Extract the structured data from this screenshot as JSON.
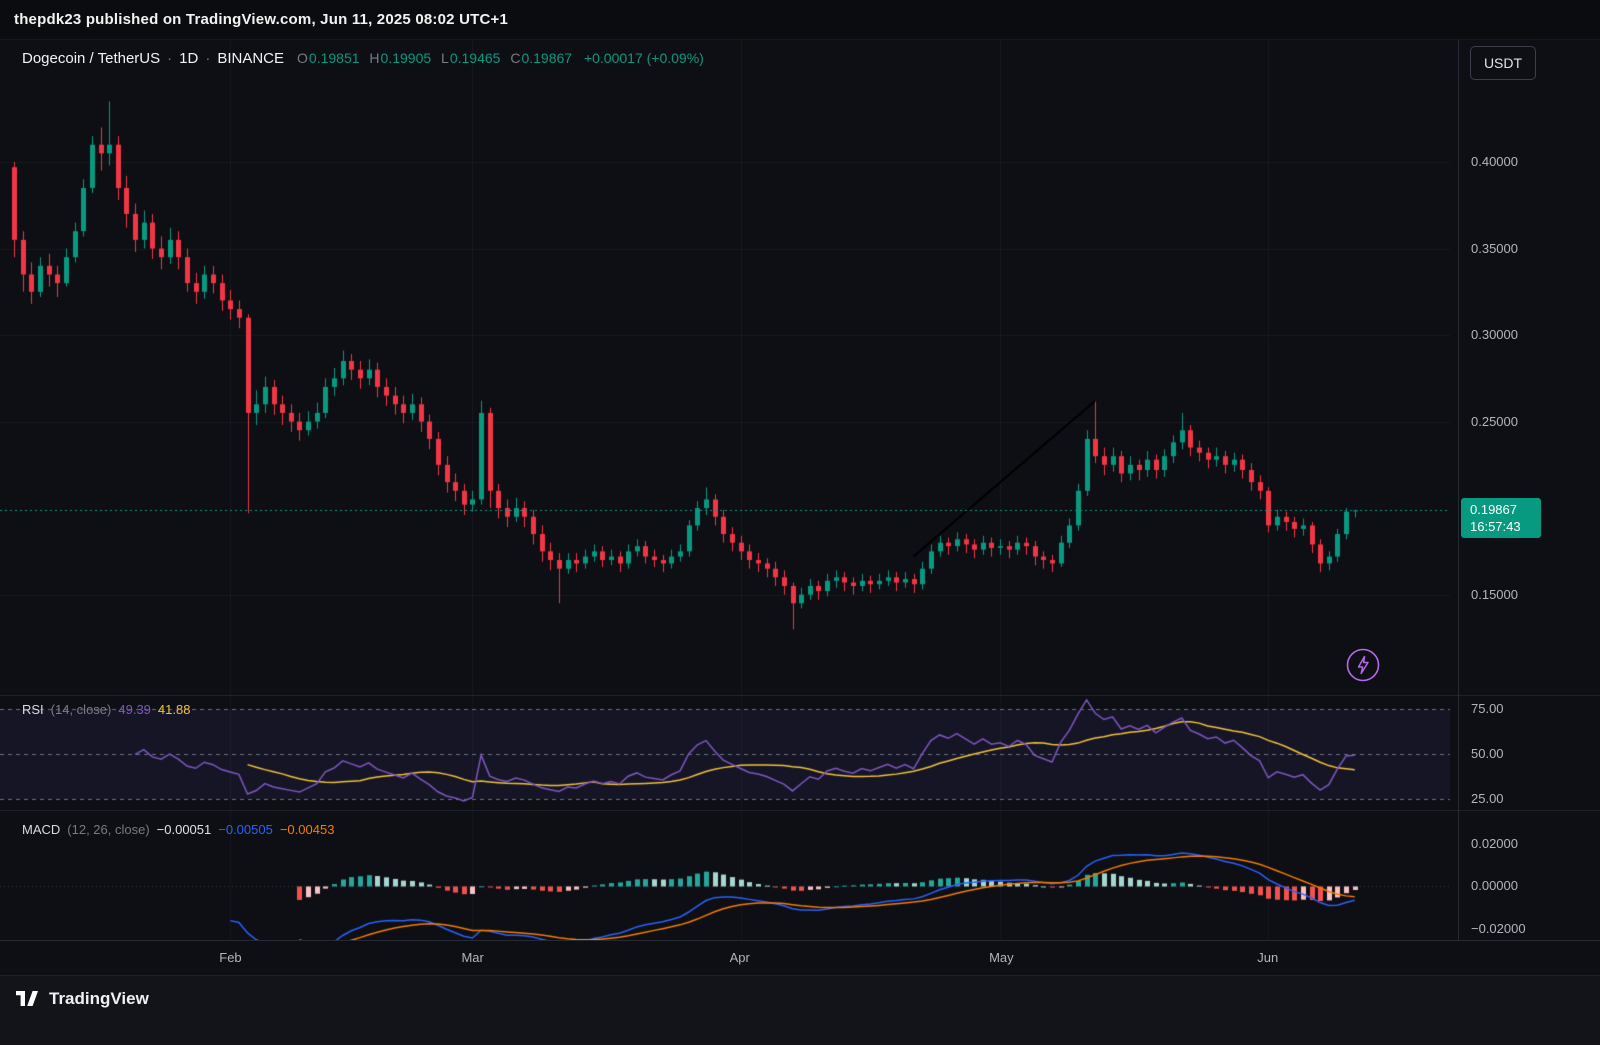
{
  "publisher_bar": {
    "text": "thepdk23 published on TradingView.com, Jun 11, 2025 08:02 UTC+1"
  },
  "toolbar": {
    "currency_button": "USDT"
  },
  "symbol_header": {
    "title": "Dogecoin / TetherUS",
    "sep": "·",
    "interval": "1D",
    "exchange": "BINANCE",
    "o_label": "O",
    "o_value": "0.19851",
    "h_label": "H",
    "h_value": "0.19905",
    "l_label": "L",
    "l_value": "0.19465",
    "c_label": "C",
    "c_value": "0.19867",
    "change": "+0.00017 (+0.09%)"
  },
  "price_badge": {
    "price": "0.19867",
    "countdown": "16:57:43"
  },
  "rsi_panel": {
    "name": "RSI",
    "params": "(14, close)",
    "value": "49.39",
    "ma_value": "41.88",
    "axis": [
      "75.00",
      "50.00",
      "25.00"
    ]
  },
  "macd_panel": {
    "name": "MACD",
    "params": "(12, 26, close)",
    "hist_value": "−0.00051",
    "macd_value": "−0.00505",
    "signal_value": "−0.00453",
    "axis": [
      "0.02000",
      "0.00000",
      "−0.02000"
    ]
  },
  "footer": {
    "brand": "TradingView"
  },
  "colors": {
    "up": "#089981",
    "down": "#f23645",
    "rsi_line": "#7e57c2",
    "rsi_ma": "#f0c23c",
    "macd_line": "#2962ff",
    "macd_signal": "#f57c00",
    "hist_up": "#26a69a",
    "hist_up_weak": "#a5d6cf",
    "hist_down": "#ef5350",
    "hist_down_weak": "#f8c1c4",
    "trendline": "#000000",
    "badge_bg": "#089981",
    "axis_text": "#b2b5be"
  },
  "chart_data": {
    "type": "candlestick",
    "title": "Dogecoin / TetherUS · 1D · BINANCE",
    "interval": "1D",
    "x_start_date": "2025-01-07",
    "ylim": [
      0.092,
      0.4705
    ],
    "current_price": 0.19867,
    "y_axis_labels": [
      {
        "text": "0.40000",
        "value": 0.4
      },
      {
        "text": "0.35000",
        "value": 0.35
      },
      {
        "text": "0.30000",
        "value": 0.3
      },
      {
        "text": "0.25000",
        "value": 0.25
      },
      {
        "text": "0.15000",
        "value": 0.15
      }
    ],
    "months": [
      {
        "label": "Feb",
        "index": 25
      },
      {
        "label": "Mar",
        "index": 53
      },
      {
        "label": "Apr",
        "index": 84
      },
      {
        "label": "May",
        "index": 114
      },
      {
        "label": "Jun",
        "index": 145
      }
    ],
    "trendline": {
      "x1_index": 104,
      "y1": 0.172,
      "x2_index": 125,
      "y2": 0.262,
      "color": "#000000"
    },
    "rsi": {
      "period": 14,
      "ma_period": 14,
      "levels": [
        75,
        50,
        25
      ],
      "ylim": [
        19,
        83
      ],
      "last_value": 49.39,
      "last_ma": 41.88
    },
    "macd": {
      "fast": 12,
      "slow": 26,
      "signal": 9,
      "axis_values": [
        0.02,
        0,
        -0.02
      ],
      "ylim": [
        -0.0252,
        0.036
      ],
      "last_hist": -0.00051,
      "last_macd": -0.00505,
      "last_signal": -0.00453
    },
    "candles": [
      [
        0.397,
        0.4,
        0.345,
        0.355
      ],
      [
        0.355,
        0.36,
        0.325,
        0.335
      ],
      [
        0.335,
        0.342,
        0.318,
        0.325
      ],
      [
        0.325,
        0.345,
        0.322,
        0.34
      ],
      [
        0.34,
        0.347,
        0.328,
        0.335
      ],
      [
        0.335,
        0.34,
        0.322,
        0.33
      ],
      [
        0.33,
        0.35,
        0.328,
        0.345
      ],
      [
        0.345,
        0.365,
        0.342,
        0.36
      ],
      [
        0.36,
        0.39,
        0.357,
        0.385
      ],
      [
        0.385,
        0.415,
        0.382,
        0.41
      ],
      [
        0.41,
        0.42,
        0.395,
        0.405
      ],
      [
        0.405,
        0.435,
        0.398,
        0.41
      ],
      [
        0.41,
        0.415,
        0.378,
        0.385
      ],
      [
        0.385,
        0.392,
        0.362,
        0.37
      ],
      [
        0.37,
        0.376,
        0.348,
        0.355
      ],
      [
        0.355,
        0.372,
        0.35,
        0.365
      ],
      [
        0.365,
        0.37,
        0.344,
        0.35
      ],
      [
        0.35,
        0.357,
        0.338,
        0.345
      ],
      [
        0.345,
        0.362,
        0.341,
        0.355
      ],
      [
        0.355,
        0.36,
        0.338,
        0.345
      ],
      [
        0.345,
        0.35,
        0.325,
        0.33
      ],
      [
        0.33,
        0.336,
        0.318,
        0.325
      ],
      [
        0.325,
        0.34,
        0.321,
        0.335
      ],
      [
        0.335,
        0.34,
        0.324,
        0.33
      ],
      [
        0.33,
        0.335,
        0.314,
        0.32
      ],
      [
        0.32,
        0.326,
        0.309,
        0.315
      ],
      [
        0.315,
        0.32,
        0.304,
        0.31
      ],
      [
        0.31,
        0.312,
        0.197,
        0.255
      ],
      [
        0.255,
        0.268,
        0.248,
        0.26
      ],
      [
        0.26,
        0.276,
        0.255,
        0.27
      ],
      [
        0.27,
        0.274,
        0.254,
        0.26
      ],
      [
        0.26,
        0.265,
        0.248,
        0.255
      ],
      [
        0.255,
        0.26,
        0.244,
        0.25
      ],
      [
        0.25,
        0.255,
        0.239,
        0.245
      ],
      [
        0.245,
        0.256,
        0.242,
        0.25
      ],
      [
        0.25,
        0.261,
        0.246,
        0.255
      ],
      [
        0.255,
        0.275,
        0.252,
        0.27
      ],
      [
        0.27,
        0.281,
        0.265,
        0.275
      ],
      [
        0.275,
        0.291,
        0.271,
        0.285
      ],
      [
        0.285,
        0.289,
        0.274,
        0.28
      ],
      [
        0.28,
        0.285,
        0.269,
        0.275
      ],
      [
        0.275,
        0.286,
        0.271,
        0.28
      ],
      [
        0.28,
        0.284,
        0.264,
        0.27
      ],
      [
        0.27,
        0.275,
        0.259,
        0.265
      ],
      [
        0.265,
        0.27,
        0.254,
        0.26
      ],
      [
        0.26,
        0.265,
        0.249,
        0.255
      ],
      [
        0.255,
        0.266,
        0.251,
        0.26
      ],
      [
        0.26,
        0.264,
        0.244,
        0.25
      ],
      [
        0.25,
        0.254,
        0.234,
        0.24
      ],
      [
        0.24,
        0.244,
        0.219,
        0.225
      ],
      [
        0.225,
        0.23,
        0.209,
        0.215
      ],
      [
        0.215,
        0.22,
        0.204,
        0.21
      ],
      [
        0.21,
        0.214,
        0.196,
        0.202
      ],
      [
        0.202,
        0.21,
        0.198,
        0.205
      ],
      [
        0.205,
        0.262,
        0.202,
        0.255
      ],
      [
        0.255,
        0.258,
        0.2,
        0.21
      ],
      [
        0.21,
        0.214,
        0.194,
        0.2
      ],
      [
        0.2,
        0.205,
        0.189,
        0.195
      ],
      [
        0.195,
        0.206,
        0.192,
        0.2
      ],
      [
        0.2,
        0.204,
        0.189,
        0.195
      ],
      [
        0.195,
        0.199,
        0.179,
        0.185
      ],
      [
        0.185,
        0.19,
        0.169,
        0.175
      ],
      [
        0.175,
        0.18,
        0.164,
        0.17
      ],
      [
        0.17,
        0.174,
        0.145,
        0.165
      ],
      [
        0.165,
        0.174,
        0.162,
        0.17
      ],
      [
        0.17,
        0.174,
        0.163,
        0.168
      ],
      [
        0.168,
        0.176,
        0.165,
        0.172
      ],
      [
        0.172,
        0.179,
        0.169,
        0.175
      ],
      [
        0.175,
        0.178,
        0.166,
        0.17
      ],
      [
        0.17,
        0.176,
        0.167,
        0.172
      ],
      [
        0.172,
        0.175,
        0.163,
        0.168
      ],
      [
        0.168,
        0.179,
        0.165,
        0.175
      ],
      [
        0.175,
        0.182,
        0.172,
        0.178
      ],
      [
        0.178,
        0.181,
        0.168,
        0.172
      ],
      [
        0.172,
        0.176,
        0.166,
        0.17
      ],
      [
        0.17,
        0.173,
        0.163,
        0.168
      ],
      [
        0.168,
        0.176,
        0.165,
        0.172
      ],
      [
        0.172,
        0.179,
        0.169,
        0.175
      ],
      [
        0.175,
        0.193,
        0.172,
        0.19
      ],
      [
        0.19,
        0.204,
        0.187,
        0.2
      ],
      [
        0.2,
        0.212,
        0.196,
        0.205
      ],
      [
        0.205,
        0.208,
        0.19,
        0.195
      ],
      [
        0.195,
        0.199,
        0.18,
        0.185
      ],
      [
        0.185,
        0.189,
        0.175,
        0.18
      ],
      [
        0.18,
        0.184,
        0.17,
        0.175
      ],
      [
        0.175,
        0.179,
        0.165,
        0.17
      ],
      [
        0.17,
        0.174,
        0.163,
        0.168
      ],
      [
        0.168,
        0.171,
        0.16,
        0.165
      ],
      [
        0.165,
        0.169,
        0.155,
        0.16
      ],
      [
        0.16,
        0.164,
        0.15,
        0.155
      ],
      [
        0.155,
        0.157,
        0.13,
        0.145
      ],
      [
        0.145,
        0.154,
        0.142,
        0.15
      ],
      [
        0.15,
        0.159,
        0.147,
        0.155
      ],
      [
        0.155,
        0.158,
        0.147,
        0.152
      ],
      [
        0.152,
        0.162,
        0.149,
        0.158
      ],
      [
        0.158,
        0.164,
        0.154,
        0.16
      ],
      [
        0.16,
        0.163,
        0.152,
        0.157
      ],
      [
        0.157,
        0.16,
        0.15,
        0.155
      ],
      [
        0.155,
        0.162,
        0.152,
        0.158
      ],
      [
        0.158,
        0.161,
        0.151,
        0.156
      ],
      [
        0.156,
        0.162,
        0.153,
        0.158
      ],
      [
        0.158,
        0.164,
        0.155,
        0.16
      ],
      [
        0.16,
        0.163,
        0.152,
        0.157
      ],
      [
        0.157,
        0.163,
        0.154,
        0.159
      ],
      [
        0.159,
        0.162,
        0.151,
        0.156
      ],
      [
        0.156,
        0.169,
        0.153,
        0.165
      ],
      [
        0.165,
        0.179,
        0.162,
        0.175
      ],
      [
        0.175,
        0.184,
        0.172,
        0.18
      ],
      [
        0.18,
        0.183,
        0.173,
        0.178
      ],
      [
        0.178,
        0.186,
        0.175,
        0.182
      ],
      [
        0.182,
        0.185,
        0.174,
        0.179
      ],
      [
        0.179,
        0.182,
        0.171,
        0.176
      ],
      [
        0.176,
        0.184,
        0.173,
        0.18
      ],
      [
        0.18,
        0.183,
        0.172,
        0.177
      ],
      [
        0.177,
        0.182,
        0.173,
        0.178
      ],
      [
        0.178,
        0.181,
        0.171,
        0.176
      ],
      [
        0.176,
        0.184,
        0.173,
        0.18
      ],
      [
        0.18,
        0.183,
        0.173,
        0.178
      ],
      [
        0.178,
        0.181,
        0.167,
        0.172
      ],
      [
        0.172,
        0.175,
        0.165,
        0.17
      ],
      [
        0.17,
        0.173,
        0.163,
        0.168
      ],
      [
        0.168,
        0.184,
        0.166,
        0.18
      ],
      [
        0.18,
        0.194,
        0.177,
        0.19
      ],
      [
        0.19,
        0.214,
        0.187,
        0.21
      ],
      [
        0.21,
        0.245,
        0.207,
        0.24
      ],
      [
        0.24,
        0.262,
        0.226,
        0.23
      ],
      [
        0.23,
        0.235,
        0.219,
        0.225
      ],
      [
        0.225,
        0.235,
        0.221,
        0.23
      ],
      [
        0.23,
        0.233,
        0.215,
        0.22
      ],
      [
        0.22,
        0.23,
        0.216,
        0.225
      ],
      [
        0.225,
        0.228,
        0.216,
        0.222
      ],
      [
        0.222,
        0.233,
        0.218,
        0.228
      ],
      [
        0.228,
        0.231,
        0.217,
        0.222
      ],
      [
        0.222,
        0.234,
        0.218,
        0.23
      ],
      [
        0.23,
        0.242,
        0.226,
        0.238
      ],
      [
        0.238,
        0.255,
        0.234,
        0.245
      ],
      [
        0.245,
        0.248,
        0.23,
        0.235
      ],
      [
        0.235,
        0.239,
        0.227,
        0.232
      ],
      [
        0.232,
        0.235,
        0.223,
        0.228
      ],
      [
        0.228,
        0.235,
        0.224,
        0.23
      ],
      [
        0.23,
        0.233,
        0.22,
        0.225
      ],
      [
        0.225,
        0.232,
        0.221,
        0.228
      ],
      [
        0.228,
        0.231,
        0.217,
        0.222
      ],
      [
        0.222,
        0.226,
        0.21,
        0.215
      ],
      [
        0.215,
        0.219,
        0.205,
        0.21
      ],
      [
        0.21,
        0.212,
        0.186,
        0.19
      ],
      [
        0.19,
        0.199,
        0.187,
        0.195
      ],
      [
        0.195,
        0.198,
        0.187,
        0.192
      ],
      [
        0.192,
        0.195,
        0.183,
        0.188
      ],
      [
        0.188,
        0.194,
        0.184,
        0.19
      ],
      [
        0.19,
        0.192,
        0.174,
        0.179
      ],
      [
        0.179,
        0.182,
        0.163,
        0.168
      ],
      [
        0.168,
        0.175,
        0.164,
        0.172
      ],
      [
        0.172,
        0.188,
        0.169,
        0.185
      ],
      [
        0.185,
        0.2,
        0.182,
        0.198
      ],
      [
        0.19851,
        0.19905,
        0.19465,
        0.19867
      ]
    ]
  }
}
